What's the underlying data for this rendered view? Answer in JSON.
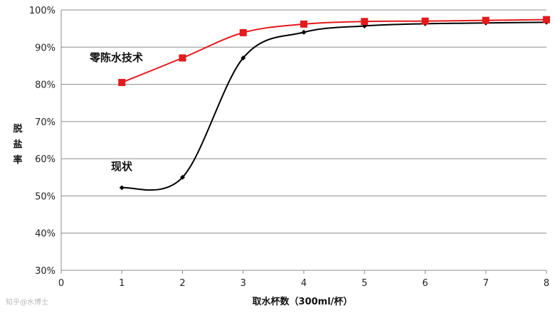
{
  "chart_data": {
    "type": "line",
    "xlabel": "取水杯数（300ml/杯）",
    "ylabel": "脱盐率",
    "xlim": [
      0,
      8
    ],
    "ylim": [
      30,
      100
    ],
    "x_ticks": [
      "0",
      "1",
      "2",
      "3",
      "4",
      "5",
      "6",
      "7",
      "8"
    ],
    "y_ticks": [
      "30%",
      "40%",
      "50%",
      "60%",
      "70%",
      "80%",
      "90%",
      "100%"
    ],
    "grid": "horizontal",
    "series": [
      {
        "name": "零陈水技术",
        "color": "#e41a1c",
        "marker": "square",
        "x": [
          1,
          2,
          3,
          4,
          5,
          6,
          7,
          8
        ],
        "y": [
          80.5,
          87.1,
          93.9,
          96.2,
          96.9,
          97.0,
          97.2,
          97.4
        ]
      },
      {
        "name": "现状",
        "color": "#000000",
        "marker": "diamond",
        "x": [
          1,
          2,
          3,
          4,
          5,
          6,
          7,
          8
        ],
        "y": [
          52.2,
          55.0,
          87.1,
          94.0,
          95.7,
          96.3,
          96.5,
          96.7
        ]
      }
    ]
  },
  "watermark": "知乎@水博士"
}
